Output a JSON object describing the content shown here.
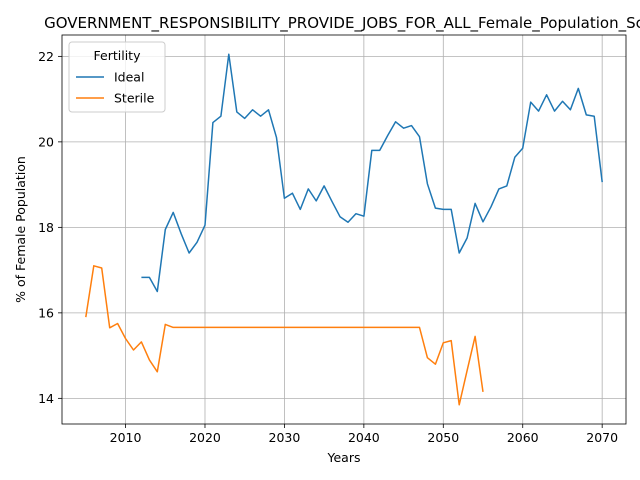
{
  "chart_data": {
    "type": "line",
    "title": "GOVERNMENT_RESPONSIBILITY_PROVIDE_JOBS_FOR_ALL_Female_Population_Sc",
    "xlabel": "Years",
    "ylabel": "% of Female Population",
    "xlim": [
      2002,
      2073
    ],
    "ylim": [
      13.4,
      22.5
    ],
    "xticks": [
      2010,
      2020,
      2030,
      2040,
      2050,
      2060,
      2070
    ],
    "yticks": [
      14,
      16,
      18,
      20,
      22
    ],
    "grid": true,
    "legend": {
      "title": "Fertility",
      "placement": "top-left"
    },
    "series": [
      {
        "name": "Ideal",
        "color": "#1f77b4",
        "x": [
          2012,
          2013,
          2014,
          2015,
          2016,
          2017,
          2018,
          2019,
          2020,
          2021,
          2022,
          2023,
          2024,
          2025,
          2026,
          2027,
          2028,
          2029,
          2030,
          2031,
          2032,
          2033,
          2034,
          2035,
          2036,
          2037,
          2038,
          2039,
          2040,
          2041,
          2042,
          2043,
          2044,
          2045,
          2046,
          2047,
          2048,
          2049,
          2050,
          2051,
          2052,
          2053,
          2054,
          2055,
          2056,
          2057,
          2058,
          2059,
          2060,
          2061,
          2062,
          2063,
          2064,
          2065,
          2066,
          2067,
          2068,
          2069,
          2070
        ],
        "y": [
          16.83,
          16.83,
          16.5,
          17.95,
          18.35,
          17.85,
          17.4,
          17.65,
          18.05,
          20.45,
          20.6,
          22.05,
          20.7,
          20.55,
          20.75,
          20.6,
          20.75,
          20.1,
          18.68,
          18.8,
          18.42,
          18.9,
          18.62,
          18.97,
          18.6,
          18.25,
          18.12,
          18.32,
          18.26,
          19.8,
          19.8,
          20.15,
          20.47,
          20.32,
          20.38,
          20.12,
          19.02,
          18.45,
          18.42,
          18.42,
          17.4,
          17.75,
          18.56,
          18.13,
          18.48,
          18.9,
          18.97,
          19.64,
          19.85,
          20.93,
          20.72,
          21.1,
          20.72,
          20.95,
          20.75,
          21.25,
          20.63,
          20.6,
          19.06
        ]
      },
      {
        "name": "Sterile",
        "color": "#ff7f0e",
        "x": [
          2005,
          2006,
          2007,
          2008,
          2009,
          2010,
          2011,
          2012,
          2013,
          2014,
          2015,
          2016,
          2017,
          2018,
          2019,
          2020,
          2021,
          2022,
          2023,
          2024,
          2025,
          2026,
          2027,
          2028,
          2029,
          2030,
          2031,
          2032,
          2033,
          2034,
          2035,
          2036,
          2037,
          2038,
          2039,
          2040,
          2041,
          2042,
          2043,
          2044,
          2045,
          2046,
          2047,
          2048,
          2049,
          2050,
          2051,
          2052,
          2053,
          2054,
          2055
        ],
        "y": [
          15.9,
          17.1,
          17.05,
          15.65,
          15.75,
          15.4,
          15.13,
          15.32,
          14.9,
          14.62,
          15.73,
          15.66,
          15.66,
          15.66,
          15.66,
          15.66,
          15.66,
          15.66,
          15.66,
          15.66,
          15.66,
          15.66,
          15.66,
          15.66,
          15.66,
          15.66,
          15.66,
          15.66,
          15.66,
          15.66,
          15.66,
          15.66,
          15.66,
          15.66,
          15.66,
          15.66,
          15.66,
          15.66,
          15.66,
          15.66,
          15.66,
          15.66,
          15.66,
          14.95,
          14.8,
          15.3,
          15.35,
          13.85,
          14.65,
          15.45,
          14.15
        ]
      }
    ]
  }
}
